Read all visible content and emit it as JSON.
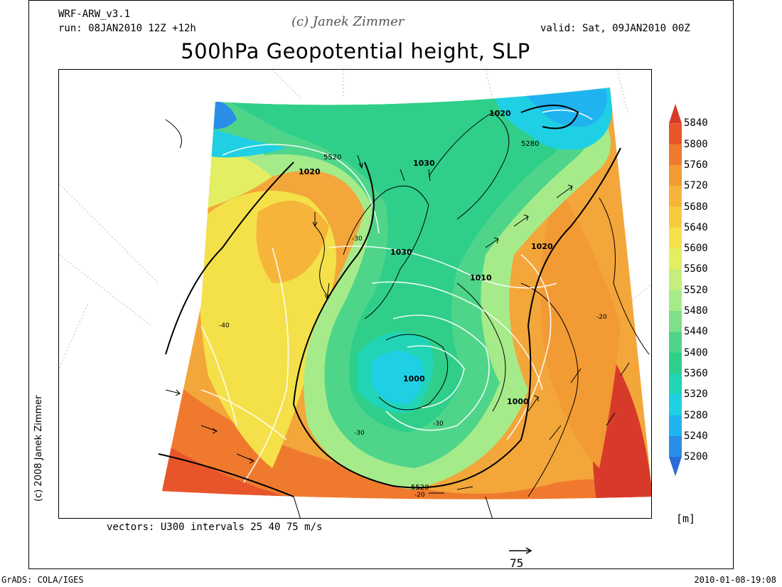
{
  "header": {
    "model": "WRF-ARW_v3.1",
    "run": "run: 08JAN2010 12Z +12h",
    "copyright": "(c) Janek Zimmer",
    "valid": "valid: Sat, 09JAN2010 00Z",
    "title": "500hPa Geopotential height, SLP"
  },
  "side_text": "(c) 2008 Janek Zimmer",
  "colorbar": {
    "levels": [
      "5840",
      "5800",
      "5760",
      "5720",
      "5680",
      "5640",
      "5600",
      "5560",
      "5520",
      "5480",
      "5440",
      "5400",
      "5360",
      "5320",
      "5280",
      "5240",
      "5200"
    ],
    "colors": [
      "#d83a2a",
      "#e8552b",
      "#ef7a2e",
      "#f29a34",
      "#f6b53a",
      "#f7cc3c",
      "#f4e14a",
      "#e3ee62",
      "#c6ee7a",
      "#a6eb8a",
      "#7fe08a",
      "#4fd58a",
      "#2fcf8a",
      "#22d4b6",
      "#1fd0e4",
      "#1fb4f0",
      "#2a8ee8",
      "#2a6bd8"
    ],
    "unit": "[m]"
  },
  "map": {
    "slp_labels": [
      "1020",
      "1030",
      "1020",
      "1030",
      "1020",
      "1010",
      "1000",
      "1000"
    ],
    "height_labels": [
      "5520",
      "5280",
      "5520"
    ],
    "temp_labels": [
      "-30",
      "-40",
      "-20",
      "-30",
      "-30",
      "-20"
    ]
  },
  "footer": {
    "vectors_note": "vectors: U300 intervals 25 40 75 m/s",
    "ref_vector": "75",
    "grads": "GrADS: COLA/IGES",
    "timestamp": "2010-01-08-19:08"
  }
}
